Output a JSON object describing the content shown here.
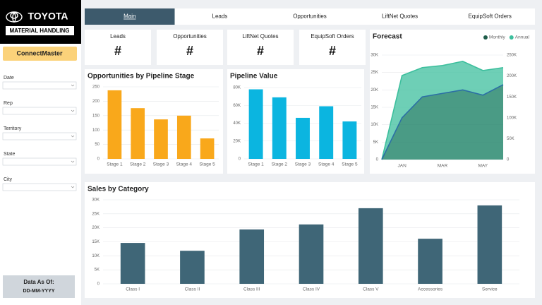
{
  "sidebar": {
    "logo": [
      "TOYOTA",
      "MATERIAL HANDLING"
    ],
    "app_button": "ConnectMaster",
    "filters": [
      "Date",
      "Rep",
      "Territory",
      "State",
      "City"
    ],
    "data_as_of": {
      "label": "Data As Of:",
      "value": "DD-MM-YYYY"
    }
  },
  "tabs": [
    "Main",
    "Leads",
    "Opportunities",
    "LiftNet Quotes",
    "EquipSoft Orders"
  ],
  "active_tab": 0,
  "kpis": [
    {
      "label": "Leads",
      "value": "#"
    },
    {
      "label": "Opportunities",
      "value": "#"
    },
    {
      "label": "LiftNet Quotes",
      "value": "#"
    },
    {
      "label": "EquipSoft Orders",
      "value": "#"
    }
  ],
  "chart_data": [
    {
      "type": "bar",
      "title": "Opportunities by Pipeline Stage",
      "categories": [
        "Stage 1",
        "Stage 2",
        "Stage 3",
        "Stage 4",
        "Stage 5"
      ],
      "values": [
        238,
        176,
        137,
        150,
        71
      ],
      "color": "#f9a81b",
      "ylim": [
        0,
        250
      ],
      "yticks": [
        0,
        50,
        100,
        150,
        200,
        250
      ],
      "grid": true
    },
    {
      "type": "bar",
      "title": "Pipeline Value",
      "categories": [
        "Stage 1",
        "Stage 2",
        "Stage 3",
        "Stage 4",
        "Stage 5"
      ],
      "values": [
        78000,
        69000,
        46000,
        59000,
        42000
      ],
      "color": "#0bb5e0",
      "ylim": [
        0,
        80000
      ],
      "yticks": [
        0,
        {
          "value": 20000,
          "label": "20K"
        },
        {
          "value": 40000,
          "label": "40K"
        },
        {
          "value": 60000,
          "label": "60K"
        },
        {
          "value": 80000,
          "label": "80K"
        }
      ],
      "grid": true
    },
    {
      "type": "area",
      "title": "Forecast",
      "categories": [
        null,
        "JAN",
        null,
        "MAR",
        null,
        "MAY",
        null
      ],
      "series": [
        {
          "name": "Monthly",
          "color": "#1e5c4a",
          "values": [
            0,
            12000,
            18000,
            19000,
            20000,
            18500,
            21500
          ]
        },
        {
          "name": "Annual",
          "color": "#3dbf9d",
          "axis": "y2",
          "values": [
            0,
            201000,
            220000,
            225000,
            235000,
            213000,
            220000
          ]
        }
      ],
      "ylim": [
        0,
        30000
      ],
      "yticks": [
        0,
        {
          "value": 5000,
          "label": "5K"
        },
        {
          "value": 10000,
          "label": "10K"
        },
        {
          "value": 15000,
          "label": "15K"
        },
        {
          "value": 20000,
          "label": "20K"
        },
        {
          "value": 25000,
          "label": "25K"
        },
        {
          "value": 30000,
          "label": "30K"
        }
      ],
      "y2lim": [
        0,
        250000
      ],
      "y2ticks": [
        0,
        {
          "value": 50000,
          "label": "50K"
        },
        {
          "value": 100000,
          "label": "100K"
        },
        {
          "value": 150000,
          "label": "150K"
        },
        {
          "value": 200000,
          "label": "200K"
        },
        {
          "value": 250000,
          "label": "250K"
        }
      ],
      "legend": "top-right",
      "grid": true
    },
    {
      "type": "bar",
      "title": "Sales by Category",
      "categories": [
        "Class I",
        "Class II",
        "Class III",
        "Class IV",
        "Class V",
        "Accessories",
        "Service"
      ],
      "values": [
        14600,
        11800,
        19400,
        21200,
        27000,
        16100,
        28000
      ],
      "color": "#3f6677",
      "ylim": [
        0,
        30000
      ],
      "yticks": [
        0,
        {
          "value": 5000,
          "label": "5K"
        },
        {
          "value": 10000,
          "label": "10K"
        },
        {
          "value": 15000,
          "label": "15K"
        },
        {
          "value": 20000,
          "label": "20K"
        },
        {
          "value": 25000,
          "label": "25K"
        },
        {
          "value": 30000,
          "label": "30K"
        }
      ],
      "grid": true
    }
  ]
}
